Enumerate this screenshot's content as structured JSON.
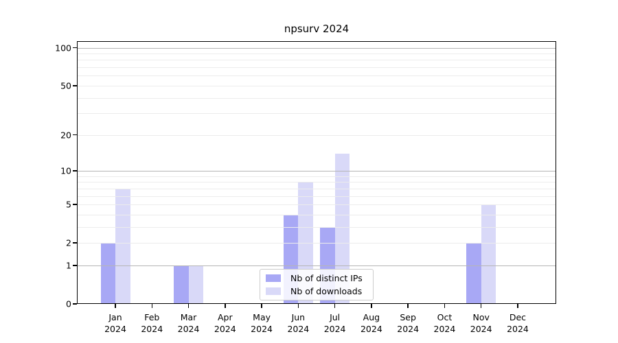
{
  "chart_data": {
    "type": "bar",
    "title": "npsurv 2024",
    "categories": [
      "Jan",
      "Feb",
      "Mar",
      "Apr",
      "May",
      "Jun",
      "Jul",
      "Aug",
      "Sep",
      "Oct",
      "Nov",
      "Dec"
    ],
    "x_year_label": "2024",
    "series": [
      {
        "name": "Nb of distinct IPs",
        "color": "#a8a8f5",
        "values": [
          2,
          0,
          1,
          0,
          0,
          4,
          3,
          0,
          0,
          0,
          2,
          0
        ]
      },
      {
        "name": "Nb of downloads",
        "color": "#d9d9f8",
        "values": [
          7,
          0,
          1,
          0,
          0,
          8,
          14,
          0,
          0,
          0,
          5,
          0
        ]
      }
    ],
    "y_scale": "log1p",
    "y_ticks": [
      0,
      1,
      2,
      5,
      10,
      20,
      50,
      100
    ],
    "y_max": 113,
    "grid_minor_values": [
      2,
      3,
      4,
      5,
      6,
      7,
      8,
      9,
      20,
      30,
      40,
      50,
      60,
      70,
      80,
      90
    ],
    "grid_major_values": [
      1,
      10,
      100
    ],
    "legend": {
      "position": "lower-center",
      "entries": [
        "Nb of distinct IPs",
        "Nb of downloads"
      ]
    },
    "colors": {
      "grid_major": "#b5b5b5",
      "grid_minor": "#ececec",
      "axis": "#000000",
      "background": "#ffffff"
    }
  }
}
